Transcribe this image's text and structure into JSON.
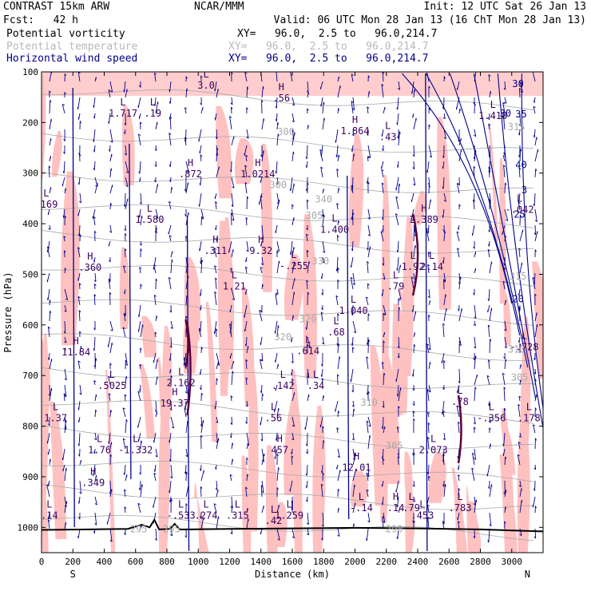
{
  "header": {
    "model": "CONTRAST 15km ARW",
    "forecast": "Fcst:   42 h",
    "center": "NCAR/MMM",
    "init": "Init: 12 UTC Sat 26 Jan 13",
    "valid": "Valid: 06 UTC Mon 28 Jan 13 (16 ChT Mon 28 Jan 13)",
    "fields": [
      {
        "label": "Potential vorticity",
        "xy": "XY=   96.0,  2.5 to   96.0,214.7",
        "color": "#000000"
      },
      {
        "label": "Potential temperature",
        "xy": "XY=   96.0,  2.5 to   96.0,214.7",
        "color": "#b8b8b8"
      },
      {
        "label": "Horizontal wind speed",
        "xy": "XY=   96.0,  2.5 to   96.0,214.7",
        "color": "#00008b"
      }
    ]
  },
  "colors": {
    "pv_fill": "#ffc0c0",
    "wind": "#00008b",
    "theta": "#a8a8a8",
    "pv_line": "#5a0038",
    "terrain": "#000000"
  },
  "chart_data": {
    "type": "cross-section",
    "xlabel": "Distance (km)",
    "ylabel": "Pressure (hPa)",
    "xlim": [
      0,
      3200
    ],
    "ylim": [
      1050,
      100
    ],
    "x_ticks": [
      0,
      200,
      400,
      600,
      800,
      1000,
      1200,
      1400,
      1600,
      1800,
      2000,
      2200,
      2400,
      2600,
      2800,
      3000
    ],
    "y_ticks": [
      100,
      200,
      300,
      400,
      500,
      600,
      700,
      800,
      900,
      1000
    ],
    "x_end_labels": {
      "left": "S",
      "right": "N"
    },
    "theta_labels": [
      {
        "x": 1560,
        "p": 225,
        "text": "300"
      },
      {
        "x": 1510,
        "p": 330,
        "text": "300"
      },
      {
        "x": 1800,
        "p": 358,
        "text": "340"
      },
      {
        "x": 1740,
        "p": 390,
        "text": "305"
      },
      {
        "x": 1780,
        "p": 480,
        "text": "330"
      },
      {
        "x": 1700,
        "p": 595,
        "text": "320"
      },
      {
        "x": 1540,
        "p": 630,
        "text": "320"
      },
      {
        "x": 2090,
        "p": 760,
        "text": "310"
      },
      {
        "x": 2250,
        "p": 845,
        "text": "305"
      },
      {
        "x": 3030,
        "p": 215,
        "text": "315"
      },
      {
        "x": 3040,
        "p": 510,
        "text": "315"
      },
      {
        "x": 3030,
        "p": 655,
        "text": "310"
      },
      {
        "x": 3050,
        "p": 710,
        "text": "305"
      },
      {
        "x": 2250,
        "p": 1010,
        "text": "290"
      },
      {
        "x": 620,
        "p": 1010,
        "text": "295"
      },
      {
        "x": 830,
        "p": 1010,
        "text": "295"
      }
    ],
    "wind_labels": [
      {
        "x": 3040,
        "p": 130,
        "text": "30"
      },
      {
        "x": 2960,
        "p": 188,
        "text": "30"
      },
      {
        "x": 3060,
        "p": 290,
        "text": "40"
      },
      {
        "x": 3050,
        "p": 388,
        "text": "25"
      },
      {
        "x": 3040,
        "p": 555,
        "text": "20"
      },
      {
        "x": 3060,
        "p": 190,
        "text": "35"
      },
      {
        "x": 3080,
        "p": 340,
        "text": "3"
      }
    ],
    "pv_extrema": [
      {
        "type": "L",
        "x": 520,
        "p": 185,
        "value": "1.717"
      },
      {
        "type": "L",
        "x": 710,
        "p": 185,
        "value": ".19"
      },
      {
        "type": "L",
        "x": 1050,
        "p": 130,
        "value": "3.0"
      },
      {
        "type": "H",
        "x": 1530,
        "p": 155,
        "value": ".56"
      },
      {
        "type": "H",
        "x": 2000,
        "p": 220,
        "value": "1.864"
      },
      {
        "type": "L",
        "x": 2210,
        "p": 232,
        "value": ".43"
      },
      {
        "type": "L",
        "x": 2880,
        "p": 190,
        "value": "1.418"
      },
      {
        "type": "L",
        "x": 30,
        "p": 365,
        "value": ".169"
      },
      {
        "type": "H",
        "x": 950,
        "p": 305,
        "value": ".872"
      },
      {
        "type": "H",
        "x": 1380,
        "p": 305,
        "value": "1.0214"
      },
      {
        "type": "L",
        "x": 690,
        "p": 395,
        "value": "1.580"
      },
      {
        "type": "L",
        "x": 1870,
        "p": 415,
        "value": "1.400"
      },
      {
        "type": "H",
        "x": 2440,
        "p": 395,
        "value": "2.389"
      },
      {
        "type": "L",
        "x": 3050,
        "p": 375,
        "value": "-.042"
      },
      {
        "type": "H",
        "x": 1110,
        "p": 457,
        "value": ".311"
      },
      {
        "type": "H",
        "x": 1400,
        "p": 457,
        "value": "9.32"
      },
      {
        "type": "L",
        "x": 1610,
        "p": 487,
        "value": "-.255"
      },
      {
        "type": "H",
        "x": 310,
        "p": 490,
        "value": ".360"
      },
      {
        "type": "L",
        "x": 2370,
        "p": 488,
        "value": "1.92"
      },
      {
        "type": "L",
        "x": 2490,
        "p": 488,
        "value": "2.14"
      },
      {
        "type": "L",
        "x": 1230,
        "p": 527,
        "value": "1.21"
      },
      {
        "type": "L",
        "x": 2260,
        "p": 527,
        "value": ".79"
      },
      {
        "type": "L",
        "x": 1990,
        "p": 575,
        "value": "1.040"
      },
      {
        "type": "L",
        "x": 1880,
        "p": 618,
        "value": ".68"
      },
      {
        "type": "L",
        "x": 3080,
        "p": 647,
        "value": "-.728"
      },
      {
        "type": "H",
        "x": 220,
        "p": 657,
        "value": "11.84"
      },
      {
        "type": "L",
        "x": 1700,
        "p": 655,
        "value": ".614"
      },
      {
        "type": "L",
        "x": 890,
        "p": 718,
        "value": "2.162"
      },
      {
        "type": "L",
        "x": 450,
        "p": 723,
        "value": ".5025"
      },
      {
        "type": "L",
        "x": 1540,
        "p": 723,
        "value": ".142"
      },
      {
        "type": "L",
        "x": 1750,
        "p": 723,
        "value": ".34"
      },
      {
        "type": "H",
        "x": 850,
        "p": 758,
        "value": "19.37"
      },
      {
        "type": "L",
        "x": 2670,
        "p": 755,
        "value": ".78"
      },
      {
        "type": "L",
        "x": 90,
        "p": 787,
        "value": "1.37"
      },
      {
        "type": "L",
        "x": 1480,
        "p": 787,
        "value": ".56"
      },
      {
        "type": "L",
        "x": 2870,
        "p": 787,
        "value": "-.356"
      },
      {
        "type": "L",
        "x": 3110,
        "p": 787,
        "value": ".178"
      },
      {
        "type": "L",
        "x": 370,
        "p": 850,
        "value": "1.76"
      },
      {
        "type": "L",
        "x": 600,
        "p": 850,
        "value": "-1.332"
      },
      {
        "type": "H",
        "x": 1520,
        "p": 850,
        "value": "457"
      },
      {
        "type": "L",
        "x": 2500,
        "p": 850,
        "value": "2.073"
      },
      {
        "type": "H",
        "x": 2010,
        "p": 885,
        "value": "12.01"
      },
      {
        "type": "H",
        "x": 330,
        "p": 915,
        "value": ".349"
      },
      {
        "type": "L",
        "x": 2040,
        "p": 965,
        "value": "-.14"
      },
      {
        "type": "H",
        "x": 2260,
        "p": 965,
        "value": ".14"
      },
      {
        "type": "L",
        "x": 2360,
        "p": 965,
        "value": ".79"
      },
      {
        "type": "L",
        "x": 2670,
        "p": 965,
        "value": ".783"
      },
      {
        "type": "L",
        "x": 50,
        "p": 980,
        "value": ".14"
      },
      {
        "type": "L",
        "x": 890,
        "p": 980,
        "value": "-.533"
      },
      {
        "type": "L",
        "x": 1050,
        "p": 980,
        "value": ".274"
      },
      {
        "type": "L",
        "x": 1250,
        "p": 980,
        "value": ".315"
      },
      {
        "type": "L",
        "x": 1580,
        "p": 980,
        "value": "1.259"
      },
      {
        "type": "L",
        "x": 1480,
        "p": 990,
        "value": ".42"
      },
      {
        "type": "L",
        "x": 2430,
        "p": 980,
        "value": ".453"
      }
    ],
    "terrain": [
      [
        0,
        1005
      ],
      [
        300,
        1004
      ],
      [
        550,
        1003
      ],
      [
        640,
        995
      ],
      [
        690,
        1000
      ],
      [
        720,
        985
      ],
      [
        750,
        1004
      ],
      [
        820,
        1003
      ],
      [
        850,
        993
      ],
      [
        880,
        1004
      ],
      [
        940,
        1004
      ],
      [
        1200,
        1003
      ],
      [
        1600,
        1002
      ],
      [
        2000,
        1001
      ],
      [
        2400,
        1002
      ],
      [
        2800,
        1004
      ],
      [
        3200,
        1008
      ]
    ]
  }
}
